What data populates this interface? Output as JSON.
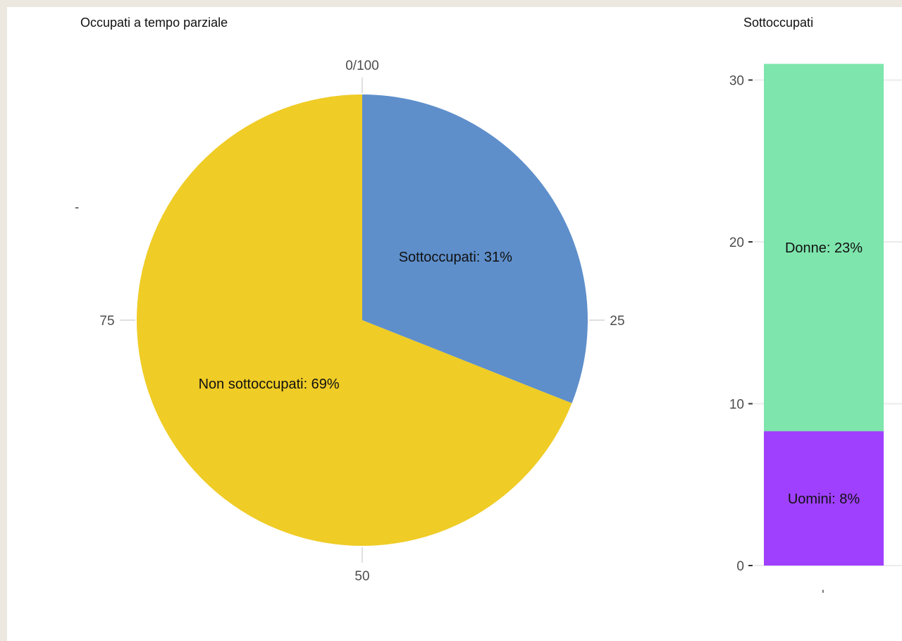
{
  "chart_data": [
    {
      "type": "pie",
      "title": "Occupati a tempo parziale",
      "y_tick_label": "-",
      "theta_ticks": [
        {
          "value": 0,
          "label": "0/100"
        },
        {
          "value": 25,
          "label": "25"
        },
        {
          "value": 50,
          "label": "50"
        },
        {
          "value": 75,
          "label": "75"
        }
      ],
      "slices": [
        {
          "name": "Sottoccupati",
          "value": 31,
          "label": "Sottoccupati: 31%",
          "color": "#5e8fcb"
        },
        {
          "name": "Non sottoccupati",
          "value": 69,
          "label": "Non sottoccupati: 69%",
          "color": "#efcc26"
        }
      ]
    },
    {
      "type": "bar",
      "stacked": true,
      "title": "Sottoccupati",
      "x_tick_label": "'",
      "ylim": [
        0,
        31
      ],
      "y_ticks": [
        0,
        10,
        20,
        30
      ],
      "grid": true,
      "series": [
        {
          "name": "Uomini",
          "value": 8.3,
          "label": "Uomini:  8%",
          "color": "#a040ff"
        },
        {
          "name": "Donne",
          "value": 22.7,
          "label": "Donne: 23%",
          "color": "#7ee5ad"
        }
      ]
    }
  ]
}
